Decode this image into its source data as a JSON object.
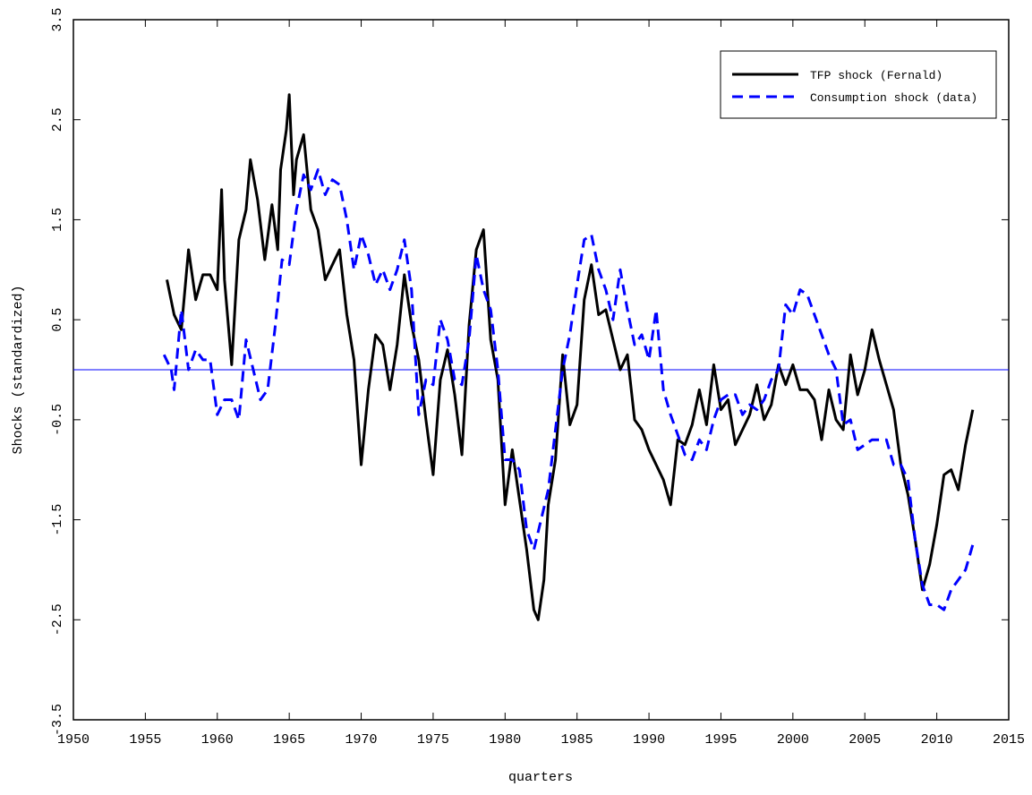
{
  "chart_data": {
    "type": "line",
    "xlabel": "quarters",
    "ylabel": "Shocks (standardized)",
    "xlim": [
      1950,
      2015
    ],
    "xticks": [
      1950,
      1955,
      1960,
      1965,
      1970,
      1975,
      1980,
      1985,
      1990,
      1995,
      2000,
      2005,
      2010,
      2015
    ],
    "ylim": [
      -3.5,
      3.5
    ],
    "yticks": [
      -3.5,
      -2.5,
      -1.5,
      -0.5,
      0.5,
      1.5,
      2.5,
      3.5
    ],
    "reference_line": {
      "value": 0,
      "color": "#0000ff"
    },
    "legend_position": "upper right",
    "series": [
      {
        "name": "TFP shock (Fernald)",
        "color": "#000000",
        "dash": "solid",
        "x": [
          1956.5,
          1957,
          1957.5,
          1958,
          1958.5,
          1959,
          1959.5,
          1960,
          1960.3,
          1960.5,
          1961,
          1961.5,
          1962,
          1962.3,
          1962.8,
          1963.3,
          1963.8,
          1964.2,
          1964.4,
          1964.8,
          1965,
          1965.3,
          1965.5,
          1966,
          1966.5,
          1967,
          1967.5,
          1968,
          1968.5,
          1969,
          1969.5,
          1970,
          1970.5,
          1971,
          1971.5,
          1972,
          1972.5,
          1973,
          1973.5,
          1974,
          1974.5,
          1975,
          1975.5,
          1976,
          1976.5,
          1977,
          1977.5,
          1978,
          1978.5,
          1979,
          1979.5,
          1980,
          1980.5,
          1981,
          1981.5,
          1982,
          1982.3,
          1982.7,
          1983,
          1983.5,
          1984,
          1984.5,
          1985,
          1985.5,
          1986,
          1986.5,
          1987,
          1987.5,
          1988,
          1988.5,
          1989,
          1989.5,
          1990,
          1990.5,
          1991,
          1991.5,
          1992,
          1992.5,
          1993,
          1993.5,
          1994,
          1994.5,
          1995,
          1995.5,
          1996,
          1996.5,
          1997,
          1997.5,
          1998,
          1998.5,
          1999,
          1999.5,
          2000,
          2000.5,
          2001,
          2001.5,
          2002,
          2002.5,
          2003,
          2003.5,
          2004,
          2004.5,
          2005,
          2005.5,
          2006,
          2006.5,
          2007,
          2007.5,
          2008,
          2008.5,
          2009,
          2009.5,
          2010,
          2010.5,
          2011,
          2011.5,
          2012,
          2012.5
        ],
        "values": [
          0.9,
          0.55,
          0.4,
          1.2,
          0.7,
          0.95,
          0.95,
          0.8,
          1.8,
          0.9,
          0.05,
          1.3,
          1.6,
          2.1,
          1.7,
          1.1,
          1.65,
          1.2,
          2.0,
          2.4,
          2.75,
          1.75,
          2.1,
          2.35,
          1.6,
          1.4,
          0.9,
          1.05,
          1.2,
          0.55,
          0.1,
          -0.95,
          -0.2,
          0.35,
          0.25,
          -0.2,
          0.25,
          0.95,
          0.45,
          0.1,
          -0.5,
          -1.05,
          -0.1,
          0.2,
          -0.25,
          -0.85,
          0.45,
          1.2,
          1.4,
          0.3,
          -0.1,
          -1.35,
          -0.8,
          -1.3,
          -1.8,
          -2.4,
          -2.5,
          -2.1,
          -1.35,
          -0.9,
          0.15,
          -0.55,
          -0.35,
          0.7,
          1.05,
          0.55,
          0.6,
          0.3,
          0.0,
          0.15,
          -0.5,
          -0.6,
          -0.8,
          -0.95,
          -1.1,
          -1.35,
          -0.7,
          -0.75,
          -0.55,
          -0.2,
          -0.55,
          0.05,
          -0.4,
          -0.3,
          -0.75,
          -0.6,
          -0.45,
          -0.15,
          -0.5,
          -0.35,
          0.05,
          -0.15,
          0.05,
          -0.2,
          -0.2,
          -0.3,
          -0.7,
          -0.2,
          -0.5,
          -0.6,
          0.15,
          -0.25,
          0.0,
          0.4,
          0.1,
          -0.15,
          -0.4,
          -0.95,
          -1.25,
          -1.7,
          -2.2,
          -1.95,
          -1.55,
          -1.05,
          -1.0,
          -1.2,
          -0.75,
          -0.4
        ]
      },
      {
        "name": "Consumption shock (data)",
        "color": "#0000ff",
        "dash": "dashed",
        "x": [
          1956.3,
          1956.8,
          1957,
          1957.5,
          1958,
          1958.5,
          1959,
          1959.5,
          1960,
          1960.5,
          1961,
          1961.5,
          1962,
          1962.5,
          1963,
          1963.5,
          1964,
          1964.5,
          1965,
          1965.5,
          1966,
          1966.5,
          1967,
          1967.5,
          1968,
          1968.5,
          1969,
          1969.5,
          1970,
          1970.5,
          1971,
          1971.5,
          1972,
          1972.5,
          1973,
          1973.5,
          1974,
          1974.5,
          1975,
          1975.5,
          1976,
          1976.5,
          1977,
          1977.5,
          1978,
          1978.5,
          1979,
          1979.5,
          1980,
          1980.5,
          1981,
          1981.5,
          1982,
          1982.5,
          1983,
          1983.5,
          1984,
          1984.5,
          1985,
          1985.5,
          1986,
          1986.5,
          1987,
          1987.5,
          1988,
          1988.5,
          1989,
          1989.5,
          1990,
          1990.5,
          1991,
          1991.5,
          1992,
          1992.5,
          1993,
          1993.5,
          1994,
          1994.5,
          1995,
          1995.5,
          1996,
          1996.5,
          1997,
          1997.5,
          1998,
          1998.5,
          1999,
          1999.5,
          2000,
          2000.5,
          2001,
          2001.5,
          2002,
          2002.5,
          2003,
          2003.5,
          2004,
          2004.5,
          2005,
          2005.5,
          2006,
          2006.5,
          2007,
          2007.5,
          2008,
          2008.5,
          2009,
          2009.5,
          2010,
          2010.5,
          2011,
          2011.5,
          2012,
          2012.5
        ],
        "values": [
          0.15,
          0.0,
          -0.2,
          0.6,
          0.0,
          0.2,
          0.1,
          0.1,
          -0.45,
          -0.3,
          -0.3,
          -0.5,
          0.3,
          0.0,
          -0.3,
          -0.2,
          0.4,
          1.1,
          1.05,
          1.6,
          1.95,
          1.8,
          2.0,
          1.75,
          1.9,
          1.85,
          1.5,
          1.0,
          1.35,
          1.15,
          0.85,
          1.0,
          0.8,
          1.0,
          1.3,
          0.8,
          -0.45,
          -0.1,
          -0.15,
          0.5,
          0.3,
          -0.1,
          -0.15,
          0.3,
          1.15,
          0.8,
          0.6,
          0.0,
          -0.9,
          -0.9,
          -1.0,
          -1.6,
          -1.8,
          -1.5,
          -1.2,
          -0.6,
          0.0,
          0.35,
          0.85,
          1.3,
          1.35,
          1.0,
          0.8,
          0.5,
          1.0,
          0.6,
          0.25,
          0.35,
          0.1,
          0.6,
          -0.2,
          -0.45,
          -0.65,
          -0.85,
          -0.9,
          -0.7,
          -0.8,
          -0.5,
          -0.3,
          -0.25,
          -0.25,
          -0.45,
          -0.35,
          -0.4,
          -0.3,
          -0.1,
          0.0,
          0.65,
          0.55,
          0.8,
          0.75,
          0.55,
          0.35,
          0.15,
          0.0,
          -0.55,
          -0.5,
          -0.8,
          -0.75,
          -0.7,
          -0.7,
          -0.7,
          -0.95,
          -0.95,
          -1.1,
          -1.7,
          -2.15,
          -2.35,
          -2.35,
          -2.4,
          -2.2,
          -2.1,
          -2.0,
          -1.75
        ]
      }
    ]
  }
}
